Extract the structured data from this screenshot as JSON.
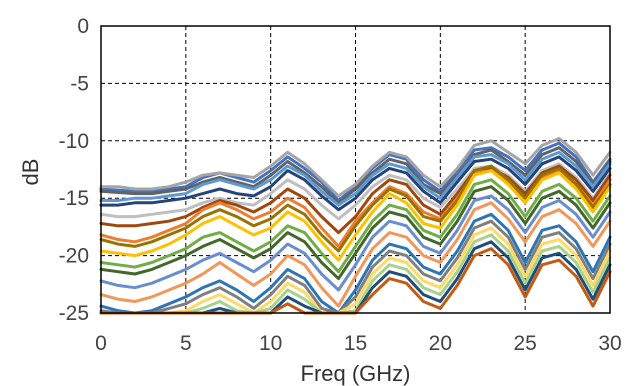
{
  "chart_data": {
    "type": "line",
    "xlabel": "Freq (GHz)",
    "ylabel": "dB",
    "xlim": [
      0,
      30
    ],
    "ylim": [
      -25,
      0
    ],
    "xticks": [
      0,
      5,
      10,
      15,
      20,
      25,
      30
    ],
    "yticks": [
      0,
      -5,
      -10,
      -15,
      -20,
      -25
    ],
    "grid": true,
    "x": [
      0,
      1,
      2,
      3,
      4,
      5,
      6,
      7,
      8,
      9,
      10,
      11,
      12,
      13,
      14,
      15,
      16,
      17,
      18,
      19,
      20,
      21,
      22,
      23,
      24,
      25,
      26,
      27,
      28,
      29,
      30
    ],
    "series": [
      {
        "color": "#4472c4",
        "values": [
          -14.2,
          -14.3,
          -14.4,
          -14.4,
          -14.2,
          -14.0,
          -13.2,
          -12.8,
          -13.2,
          -13.6,
          -12.6,
          -11.4,
          -12.4,
          -13.6,
          -15.2,
          -14.0,
          -12.4,
          -11.2,
          -11.6,
          -13.4,
          -14.4,
          -12.6,
          -10.8,
          -10.6,
          -11.4,
          -12.6,
          -10.8,
          -10.2,
          -11.4,
          -13.6,
          -11.6
        ]
      },
      {
        "color": "#a5a5a5",
        "values": [
          -14.0,
          -14.0,
          -14.2,
          -14.2,
          -14.0,
          -13.6,
          -13.0,
          -12.8,
          -13.0,
          -13.2,
          -12.2,
          -11.0,
          -12.0,
          -13.4,
          -14.8,
          -13.8,
          -12.2,
          -11.0,
          -11.4,
          -13.0,
          -14.0,
          -12.4,
          -10.4,
          -10.0,
          -11.0,
          -12.0,
          -10.4,
          -9.8,
          -11.0,
          -13.0,
          -11.0
        ]
      },
      {
        "color": "#636363",
        "values": [
          -14.4,
          -14.5,
          -14.6,
          -14.6,
          -14.4,
          -14.2,
          -13.6,
          -13.2,
          -13.6,
          -14.0,
          -13.0,
          -11.8,
          -12.8,
          -14.0,
          -15.4,
          -14.2,
          -12.8,
          -11.6,
          -12.0,
          -13.8,
          -14.6,
          -13.0,
          -11.2,
          -10.8,
          -11.8,
          -13.0,
          -11.2,
          -10.6,
          -11.8,
          -13.8,
          -11.8
        ]
      },
      {
        "color": "#5b9bd5",
        "values": [
          -15.2,
          -15.2,
          -15.0,
          -15.0,
          -14.8,
          -14.6,
          -13.8,
          -13.4,
          -13.8,
          -14.2,
          -13.4,
          -12.2,
          -13.0,
          -14.4,
          -15.6,
          -14.6,
          -13.0,
          -12.0,
          -12.4,
          -14.0,
          -15.0,
          -13.2,
          -11.4,
          -11.2,
          -12.0,
          -13.4,
          -11.6,
          -11.0,
          -12.2,
          -14.0,
          -12.0
        ]
      },
      {
        "color": "#264478",
        "values": [
          -15.6,
          -15.6,
          -15.4,
          -15.4,
          -15.2,
          -15.0,
          -14.6,
          -14.2,
          -14.6,
          -14.8,
          -14.0,
          -12.6,
          -13.4,
          -14.8,
          -16.0,
          -15.0,
          -13.4,
          -12.4,
          -12.8,
          -14.4,
          -15.4,
          -13.6,
          -11.8,
          -11.6,
          -12.4,
          -13.8,
          -12.0,
          -11.4,
          -12.6,
          -14.4,
          -12.4
        ]
      },
      {
        "color": "#bfbfbf",
        "values": [
          -16.4,
          -16.6,
          -16.6,
          -16.4,
          -16.2,
          -16.0,
          -15.4,
          -15.0,
          -15.4,
          -15.6,
          -14.6,
          -13.4,
          -14.2,
          -15.6,
          -16.8,
          -15.6,
          -14.0,
          -13.0,
          -13.4,
          -15.0,
          -15.8,
          -14.2,
          -12.4,
          -12.2,
          -13.0,
          -14.4,
          -12.6,
          -12.0,
          -13.2,
          -15.0,
          -12.8
        ]
      },
      {
        "color": "#9e480e",
        "values": [
          -17.2,
          -17.4,
          -17.4,
          -17.2,
          -17.0,
          -16.6,
          -15.8,
          -15.2,
          -15.6,
          -16.2,
          -15.4,
          -14.2,
          -15.0,
          -16.6,
          -18.0,
          -16.6,
          -14.6,
          -13.4,
          -13.8,
          -15.6,
          -16.4,
          -14.6,
          -12.6,
          -12.4,
          -13.2,
          -14.6,
          -12.8,
          -12.2,
          -13.4,
          -15.2,
          -13.0
        ]
      },
      {
        "color": "#ed7d31",
        "values": [
          -18.2,
          -18.6,
          -18.8,
          -18.4,
          -17.8,
          -17.2,
          -16.0,
          -15.4,
          -16.0,
          -16.8,
          -16.2,
          -15.0,
          -15.8,
          -17.6,
          -19.2,
          -17.0,
          -15.4,
          -14.0,
          -14.6,
          -16.2,
          -16.8,
          -15.0,
          -12.8,
          -12.6,
          -13.6,
          -15.0,
          -13.2,
          -12.6,
          -13.8,
          -15.6,
          -13.4
        ]
      },
      {
        "color": "#997300",
        "values": [
          -18.6,
          -19.0,
          -19.2,
          -18.8,
          -18.2,
          -17.6,
          -16.6,
          -16.0,
          -16.6,
          -17.4,
          -16.8,
          -15.6,
          -16.4,
          -18.2,
          -19.6,
          -17.4,
          -15.6,
          -14.2,
          -14.8,
          -16.6,
          -17.0,
          -15.2,
          -12.6,
          -12.2,
          -13.4,
          -15.0,
          -13.0,
          -12.4,
          -13.8,
          -15.8,
          -13.8
        ]
      },
      {
        "color": "#ffc000",
        "values": [
          -19.6,
          -19.8,
          -20.0,
          -19.6,
          -19.0,
          -18.2,
          -17.2,
          -16.6,
          -17.4,
          -18.2,
          -17.6,
          -16.2,
          -17.0,
          -18.8,
          -20.4,
          -18.2,
          -16.2,
          -14.6,
          -15.4,
          -17.2,
          -17.6,
          -15.6,
          -13.0,
          -12.6,
          -13.8,
          -15.4,
          -13.4,
          -12.8,
          -14.2,
          -16.2,
          -14.0
        ]
      },
      {
        "color": "#70ad47",
        "values": [
          -20.6,
          -20.8,
          -21.0,
          -20.6,
          -20.0,
          -19.4,
          -18.4,
          -18.0,
          -18.8,
          -19.6,
          -18.8,
          -17.4,
          -18.0,
          -19.8,
          -21.4,
          -19.2,
          -17.0,
          -15.6,
          -16.0,
          -17.8,
          -18.4,
          -16.4,
          -13.8,
          -13.4,
          -14.6,
          -16.6,
          -14.4,
          -13.8,
          -15.0,
          -17.0,
          -14.8
        ]
      },
      {
        "color": "#43682b",
        "values": [
          -21.2,
          -21.4,
          -21.6,
          -21.2,
          -20.6,
          -20.0,
          -19.2,
          -18.6,
          -19.4,
          -20.2,
          -19.4,
          -18.0,
          -18.8,
          -20.6,
          -22.0,
          -19.8,
          -17.6,
          -16.2,
          -16.6,
          -18.4,
          -19.0,
          -17.0,
          -14.4,
          -14.0,
          -15.2,
          -17.2,
          -15.0,
          -14.4,
          -15.6,
          -17.6,
          -15.4
        ]
      },
      {
        "color": "#698ed0",
        "values": [
          -22.2,
          -22.6,
          -22.8,
          -22.4,
          -21.8,
          -21.2,
          -20.4,
          -19.8,
          -20.6,
          -21.4,
          -20.4,
          -19.0,
          -19.8,
          -21.6,
          -23.0,
          -20.8,
          -18.4,
          -17.0,
          -17.4,
          -19.2,
          -19.8,
          -17.8,
          -15.2,
          -14.8,
          -16.0,
          -18.0,
          -15.8,
          -15.2,
          -16.4,
          -18.4,
          -16.2
        ]
      },
      {
        "color": "#f1975a",
        "values": [
          -23.4,
          -23.8,
          -24.0,
          -23.6,
          -23.0,
          -22.4,
          -21.6,
          -20.6,
          -21.6,
          -22.6,
          -21.6,
          -20.0,
          -20.8,
          -22.8,
          -24.4,
          -21.8,
          -19.4,
          -18.0,
          -18.4,
          -20.0,
          -20.6,
          -18.6,
          -16.0,
          -15.4,
          -16.8,
          -18.8,
          -16.6,
          -16.0,
          -17.2,
          -19.2,
          -17.0
        ]
      },
      {
        "color": "#2e75b6",
        "values": [
          -24.4,
          -24.8,
          -25.0,
          -24.8,
          -24.2,
          -23.6,
          -22.8,
          -22.2,
          -23.0,
          -24.0,
          -22.8,
          -21.2,
          -22.0,
          -24.0,
          -25.0,
          -23.0,
          -20.4,
          -19.0,
          -19.4,
          -21.0,
          -21.6,
          -19.6,
          -17.0,
          -16.4,
          -17.8,
          -20.6,
          -17.8,
          -17.4,
          -18.8,
          -21.4,
          -18.4
        ]
      },
      {
        "color": "#7f7f7f",
        "values": [
          -24.8,
          -25.0,
          -25.0,
          -25.0,
          -24.6,
          -24.2,
          -23.4,
          -22.8,
          -23.6,
          -24.6,
          -23.4,
          -21.8,
          -22.6,
          -24.6,
          -25.0,
          -23.6,
          -21.0,
          -19.6,
          -20.0,
          -21.6,
          -22.2,
          -20.2,
          -17.6,
          -17.0,
          -18.4,
          -21.2,
          -18.4,
          -18.0,
          -19.4,
          -22.0,
          -19.0
        ]
      },
      {
        "color": "#ffd966",
        "values": [
          -25.0,
          -25.0,
          -25.0,
          -25.0,
          -25.0,
          -24.8,
          -24.0,
          -23.4,
          -24.2,
          -25.0,
          -24.0,
          -22.4,
          -23.2,
          -25.0,
          -25.0,
          -24.2,
          -21.6,
          -20.2,
          -20.6,
          -22.2,
          -22.8,
          -20.8,
          -18.2,
          -17.6,
          -19.0,
          -21.8,
          -19.0,
          -18.6,
          -20.0,
          -22.6,
          -19.6
        ]
      },
      {
        "color": "#a9d18e",
        "values": [
          -25.0,
          -25.0,
          -25.0,
          -25.0,
          -25.0,
          -25.0,
          -24.6,
          -24.0,
          -24.8,
          -25.0,
          -24.6,
          -23.0,
          -23.8,
          -25.0,
          -25.0,
          -24.8,
          -22.2,
          -20.8,
          -21.2,
          -22.8,
          -23.4,
          -21.4,
          -18.8,
          -18.2,
          -19.6,
          -22.4,
          -19.6,
          -19.2,
          -20.6,
          -23.2,
          -20.2
        ]
      },
      {
        "color": "#1f4e79",
        "values": [
          -25.0,
          -25.0,
          -25.0,
          -25.0,
          -25.0,
          -25.0,
          -25.0,
          -24.6,
          -25.0,
          -25.0,
          -25.0,
          -23.6,
          -24.4,
          -25.0,
          -25.0,
          -25.0,
          -22.8,
          -21.4,
          -21.8,
          -23.4,
          -24.0,
          -22.0,
          -19.4,
          -18.8,
          -20.2,
          -23.0,
          -20.2,
          -19.8,
          -21.2,
          -23.8,
          -20.8
        ]
      },
      {
        "color": "#c55a11",
        "values": [
          -25.0,
          -25.0,
          -25.0,
          -25.0,
          -25.0,
          -25.0,
          -25.0,
          -25.0,
          -25.0,
          -25.0,
          -25.0,
          -24.2,
          -25.0,
          -25.0,
          -25.0,
          -25.0,
          -23.4,
          -22.0,
          -22.4,
          -24.0,
          -24.6,
          -22.6,
          -20.0,
          -19.4,
          -20.8,
          -23.6,
          -20.8,
          -20.4,
          -21.8,
          -24.4,
          -21.4
        ]
      }
    ]
  }
}
